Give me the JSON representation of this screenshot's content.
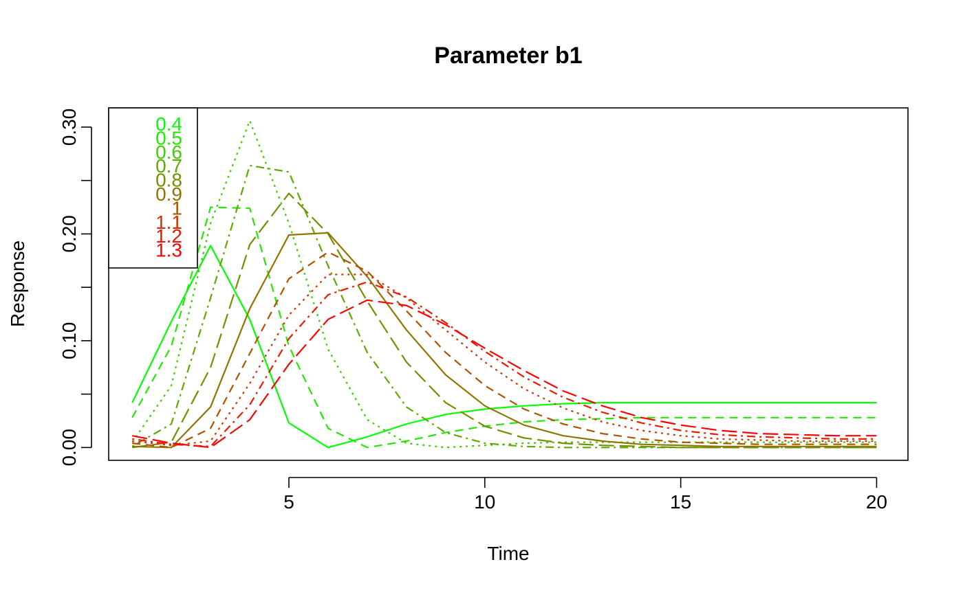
{
  "chart_data": {
    "type": "line",
    "title": "Parameter b1",
    "xlabel": "Time",
    "ylabel": "Response",
    "xlim": [
      0.4,
      20.8
    ],
    "ylim": [
      -0.012,
      0.318
    ],
    "x_ticks": [
      5,
      10,
      15,
      20
    ],
    "x_tick_labels": [
      "5",
      "10",
      "15",
      "20"
    ],
    "y_ticks": [
      0.0,
      0.05,
      0.1,
      0.15,
      0.2,
      0.25,
      0.3
    ],
    "y_tick_labels": [
      "0.00",
      "",
      "0.10",
      "",
      "0.20",
      "",
      "0.30"
    ],
    "grid": false,
    "legend_position": "top-left",
    "x": [
      1,
      2,
      3,
      4,
      5,
      6,
      7,
      8,
      9,
      10,
      11,
      12,
      13,
      14,
      15,
      16,
      17,
      18,
      19,
      20
    ],
    "series": [
      {
        "name": "0.4",
        "color": "#00ff00",
        "dash": "solid",
        "values": [
          0.042,
          0.118,
          0.189,
          0.12,
          0.023,
          0.0,
          0.01,
          0.022,
          0.031,
          0.036,
          0.039,
          0.041,
          0.042,
          0.042,
          0.042,
          0.042,
          0.042,
          0.042,
          0.042,
          0.042
        ]
      },
      {
        "name": "0.5",
        "color": "#20e800",
        "dash": "dashed",
        "values": [
          0.028,
          0.095,
          0.225,
          0.224,
          0.095,
          0.018,
          0.0,
          0.006,
          0.014,
          0.02,
          0.024,
          0.026,
          0.027,
          0.028,
          0.028,
          0.028,
          0.028,
          0.028,
          0.028,
          0.028
        ]
      },
      {
        "name": "0.6",
        "color": "#3fce00",
        "dash": "dotted",
        "values": [
          0.005,
          0.058,
          0.21,
          0.306,
          0.21,
          0.092,
          0.026,
          0.004,
          0.0,
          0.002,
          0.004,
          0.005,
          0.005,
          0.005,
          0.005,
          0.005,
          0.005,
          0.005,
          0.005,
          0.005
        ]
      },
      {
        "name": "0.7",
        "color": "#5fa800",
        "dash": "dotdash",
        "values": [
          0.001,
          0.022,
          0.14,
          0.264,
          0.258,
          0.17,
          0.089,
          0.038,
          0.014,
          0.004,
          0.001,
          0.0,
          0.0,
          0.0,
          0.0,
          0.0,
          0.0,
          0.0,
          0.0,
          0.0
        ]
      },
      {
        "name": "0.8",
        "color": "#6f9000",
        "dash": "longdash",
        "values": [
          0.0,
          0.005,
          0.075,
          0.19,
          0.238,
          0.2,
          0.137,
          0.08,
          0.042,
          0.02,
          0.009,
          0.004,
          0.002,
          0.001,
          0.0,
          0.0,
          0.0,
          0.0,
          0.0,
          0.0
        ]
      },
      {
        "name": "0.9",
        "color": "#8f7400",
        "dash": "solid",
        "values": [
          0.001,
          0.0,
          0.038,
          0.13,
          0.199,
          0.201,
          0.16,
          0.11,
          0.068,
          0.039,
          0.021,
          0.011,
          0.006,
          0.003,
          0.002,
          0.001,
          0.001,
          0.001,
          0.001,
          0.001
        ]
      },
      {
        "name": "1",
        "color": "#ad5200",
        "dash": "dashed",
        "values": [
          0.004,
          0.0,
          0.018,
          0.088,
          0.158,
          0.183,
          0.165,
          0.128,
          0.089,
          0.058,
          0.036,
          0.022,
          0.013,
          0.008,
          0.005,
          0.004,
          0.003,
          0.003,
          0.003,
          0.003
        ]
      },
      {
        "name": "1.1",
        "color": "#cf3300",
        "dash": "dotted",
        "values": [
          0.006,
          0.002,
          0.006,
          0.06,
          0.124,
          0.162,
          0.162,
          0.14,
          0.11,
          0.08,
          0.055,
          0.037,
          0.024,
          0.016,
          0.011,
          0.008,
          0.007,
          0.006,
          0.006,
          0.006
        ]
      },
      {
        "name": "1.2",
        "color": "#e81a00",
        "dash": "dotdash",
        "values": [
          0.008,
          0.003,
          0.001,
          0.04,
          0.102,
          0.143,
          0.155,
          0.141,
          0.117,
          0.09,
          0.066,
          0.047,
          0.033,
          0.023,
          0.016,
          0.012,
          0.01,
          0.009,
          0.008,
          0.008
        ]
      },
      {
        "name": "1.3",
        "color": "#ff0000",
        "dash": "longdash",
        "values": [
          0.011,
          0.004,
          0.0,
          0.026,
          0.078,
          0.12,
          0.138,
          0.133,
          0.115,
          0.093,
          0.072,
          0.053,
          0.039,
          0.028,
          0.021,
          0.016,
          0.013,
          0.012,
          0.011,
          0.011
        ]
      }
    ]
  }
}
